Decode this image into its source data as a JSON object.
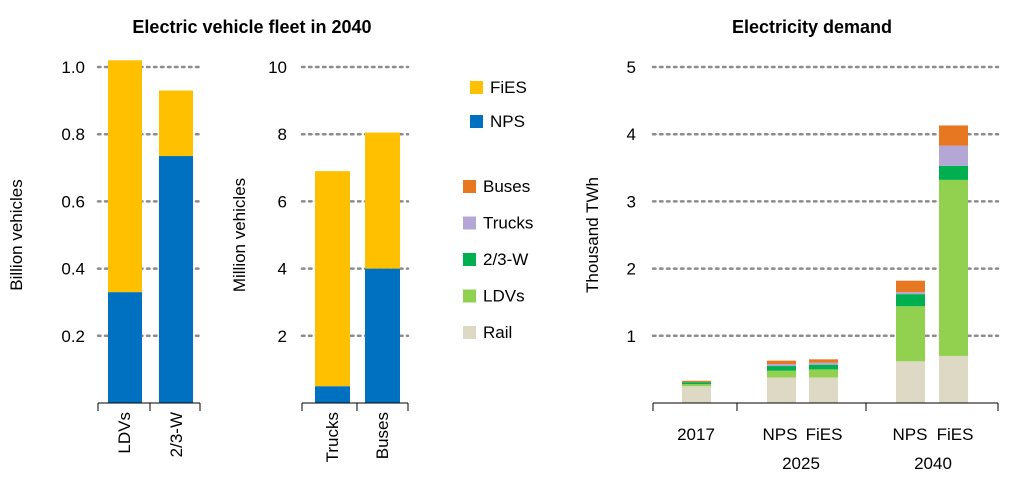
{
  "titles": {
    "fleet": "Electric vehicle fleet in 2040",
    "demand": "Electricity demand"
  },
  "fleet_legend": [
    {
      "name": "FiES",
      "color": "#FFC000"
    },
    {
      "name": "NPS",
      "color": "#0070C0"
    }
  ],
  "demand_legend": [
    {
      "name": "Buses",
      "color": "#E87722"
    },
    {
      "name": "Trucks",
      "color": "#B4A7D6"
    },
    {
      "name": "2/3-W",
      "color": "#00B050"
    },
    {
      "name": "LDVs",
      "color": "#92D050"
    },
    {
      "name": "Rail",
      "color": "#DDD9C4"
    }
  ],
  "chart_data": [
    {
      "type": "bar",
      "stacked": true,
      "title": "Electric vehicle fleet in 2040",
      "ylabel": "Billion vehicles",
      "ylim": [
        0,
        1.0
      ],
      "yticks": [
        "0.2",
        "0.4",
        "0.6",
        "0.8",
        "1.0"
      ],
      "categories": [
        "LDVs",
        "2/3-W"
      ],
      "series": [
        {
          "name": "NPS",
          "color": "#0070C0",
          "values": [
            0.33,
            0.735
          ]
        },
        {
          "name": "FiES",
          "color": "#FFC000",
          "values": [
            0.69,
            0.195
          ]
        }
      ]
    },
    {
      "type": "bar",
      "stacked": true,
      "ylabel": "Million vehicles",
      "ylim": [
        0,
        10
      ],
      "yticks": [
        "2",
        "4",
        "6",
        "8",
        "10"
      ],
      "categories": [
        "Trucks",
        "Buses"
      ],
      "series": [
        {
          "name": "NPS",
          "color": "#0070C0",
          "values": [
            0.5,
            4.0
          ]
        },
        {
          "name": "FiES",
          "color": "#FFC000",
          "values": [
            6.4,
            4.05
          ]
        }
      ]
    },
    {
      "type": "bar",
      "stacked": true,
      "title": "Electricity demand",
      "ylabel": "Thousand TWh",
      "ylim": [
        0,
        5
      ],
      "yticks": [
        "1",
        "2",
        "3",
        "4",
        "5"
      ],
      "categories": [
        "2017",
        "NPS",
        "FiES",
        "NPS",
        "FiES"
      ],
      "groups": [
        {
          "label": "2017",
          "bars": [
            0
          ]
        },
        {
          "label": "2025",
          "bars": [
            1,
            2
          ]
        },
        {
          "label": "2040",
          "bars": [
            3,
            4
          ]
        }
      ],
      "series": [
        {
          "name": "Rail",
          "color": "#DDD9C4",
          "values": [
            0.25,
            0.38,
            0.38,
            0.62,
            0.7
          ]
        },
        {
          "name": "LDVs",
          "color": "#92D050",
          "values": [
            0.03,
            0.1,
            0.12,
            0.82,
            2.62
          ]
        },
        {
          "name": "2/3-W",
          "color": "#00B050",
          "values": [
            0.03,
            0.07,
            0.07,
            0.18,
            0.21
          ]
        },
        {
          "name": "Trucks",
          "color": "#B4A7D6",
          "values": [
            0.0,
            0.03,
            0.03,
            0.03,
            0.3
          ]
        },
        {
          "name": "Buses",
          "color": "#E87722",
          "values": [
            0.02,
            0.05,
            0.05,
            0.17,
            0.3
          ]
        }
      ]
    }
  ]
}
